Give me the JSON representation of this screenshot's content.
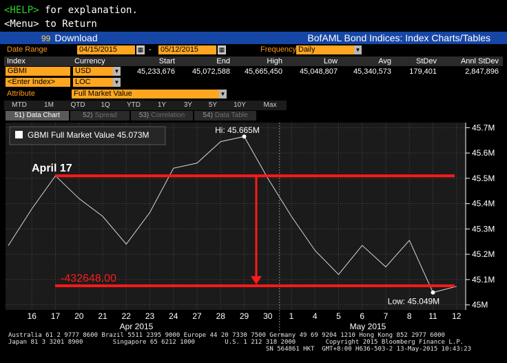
{
  "help_line": {
    "key": "<HELP>",
    "text": " for explanation."
  },
  "menu_line": "<Menu> to Return",
  "toolbar": {
    "download_num": "99",
    "download_label": "Download",
    "title": "BofAML Bond Indices: Index Charts/Tables"
  },
  "controls": {
    "date_range_label": "Date Range",
    "start_date": "04/15/2015",
    "end_date": "05/12/2015",
    "date_sep": "-",
    "frequency_label": "Frequency",
    "frequency_value": "Daily",
    "attribute_label": "Attribute",
    "attribute_value": "Full Market Value"
  },
  "table": {
    "headers": [
      "Index",
      "Currency",
      "Start",
      "End",
      "High",
      "Low",
      "Avg",
      "StDev",
      "Annl StDev"
    ],
    "row": {
      "index": "GBMI",
      "currency": "USD",
      "start": "45,233,676",
      "end": "45,072,588",
      "high": "45,665,450",
      "low": "45,048,807",
      "avg": "45,340,573",
      "stdev": "179,401",
      "annl_stdev": "2,847,896"
    },
    "row2": {
      "index": "<Enter Index>",
      "currency": "LOC"
    }
  },
  "ranges": [
    "MTD",
    "1M",
    "QTD",
    "1Q",
    "YTD",
    "1Y",
    "3Y",
    "5Y",
    "10Y",
    "Max"
  ],
  "tabs": [
    {
      "num": "51)",
      "label": "Data Chart",
      "active": true
    },
    {
      "num": "52)",
      "label": "Spread",
      "active": false
    },
    {
      "num": "53)",
      "label": "Correlation",
      "active": false
    },
    {
      "num": "54)",
      "label": "Data Table",
      "active": false
    }
  ],
  "chart_data": {
    "type": "line",
    "legend": "GBMI Full Market Value 45.073M",
    "x": [
      "2015-04-15",
      "2015-04-16",
      "2015-04-17",
      "2015-04-20",
      "2015-04-21",
      "2015-04-22",
      "2015-04-23",
      "2015-04-24",
      "2015-04-27",
      "2015-04-28",
      "2015-04-29",
      "2015-04-30",
      "2015-05-01",
      "2015-05-04",
      "2015-05-05",
      "2015-05-06",
      "2015-05-07",
      "2015-05-08",
      "2015-05-11",
      "2015-05-12"
    ],
    "values": [
      45.234,
      45.38,
      45.51,
      45.42,
      45.35,
      45.24,
      45.365,
      45.54,
      45.56,
      45.645,
      45.665,
      45.5,
      45.35,
      45.215,
      45.12,
      45.235,
      45.15,
      45.255,
      45.049,
      45.073
    ],
    "x_tick_labels": [
      "16",
      "17",
      "20",
      "21",
      "22",
      "23",
      "24",
      "27",
      "28",
      "29",
      "30",
      "1",
      "4",
      "5",
      "6",
      "7",
      "8",
      "11",
      "12"
    ],
    "month_labels": [
      "Apr 2015",
      "May 2015"
    ],
    "y_ticks": [
      45.0,
      45.1,
      45.2,
      45.3,
      45.4,
      45.5,
      45.6,
      45.7
    ],
    "y_tick_labels": [
      "45M",
      "45.1M",
      "45.2M",
      "45.3M",
      "45.4M",
      "45.5M",
      "45.6M",
      "45.7M"
    ],
    "ylim": [
      44.98,
      45.72
    ],
    "high_label": "Hi: 45.665M",
    "low_label": "Low: 45.049M",
    "annotations": {
      "start_label": "April 17",
      "diff_label": "-432648.00",
      "annotation_color": "#ff1a1a"
    },
    "grid": true,
    "legend_position": "top-left"
  },
  "footer": {
    "line1": "Australia 61 2 9777 8600 Brazil 5511 2395 9000 Europe 44 20 7330 7500 Germany 49 69 9204 1210 Hong Kong 852 2977 6000",
    "line2": "Japan 81 3 3201 8900        Singapore 65 6212 1000        U.S. 1 212 318 2000        Copyright 2015 Bloomberg Finance L.P.",
    "line3": "SN 564861 HKT  GMT+8:00 H636-503-2 13-May-2015 10:43:23"
  },
  "colors": {
    "accent_orange": "#ffa620",
    "titlebar_blue": "#1747a6",
    "help_green": "#2fd12f"
  }
}
